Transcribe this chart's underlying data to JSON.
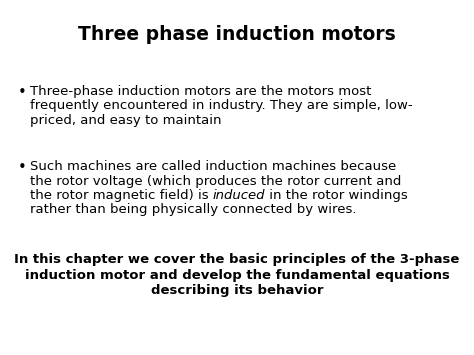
{
  "title": "Three phase induction motors",
  "title_fontsize": 13.5,
  "title_fontweight": "bold",
  "bg_color": "#ffffff",
  "text_color": "#000000",
  "bullet1_line1": "Three-phase induction motors are the motors most",
  "bullet1_line2": "frequently encountered in industry. They are simple, low-",
  "bullet1_line3": "priced, and easy to maintain",
  "bullet2_line1": "Such machines are called induction machines because",
  "bullet2_line2": "the rotor voltage (which produces the rotor current and",
  "bullet2_line3_pre": "the rotor magnetic field) is ",
  "bullet2_line3_italic": "induced",
  "bullet2_line3_post": " in the rotor windings",
  "bullet2_line4": "rather than being physically connected by wires.",
  "footer_line1": "In this chapter we cover the basic principles of the 3-phase",
  "footer_line2": "induction motor and develop the fundamental equations",
  "footer_line3": "describing its behavior",
  "bullet_fontsize": 9.5,
  "footer_fontsize": 9.5,
  "bullet_symbol": "•"
}
